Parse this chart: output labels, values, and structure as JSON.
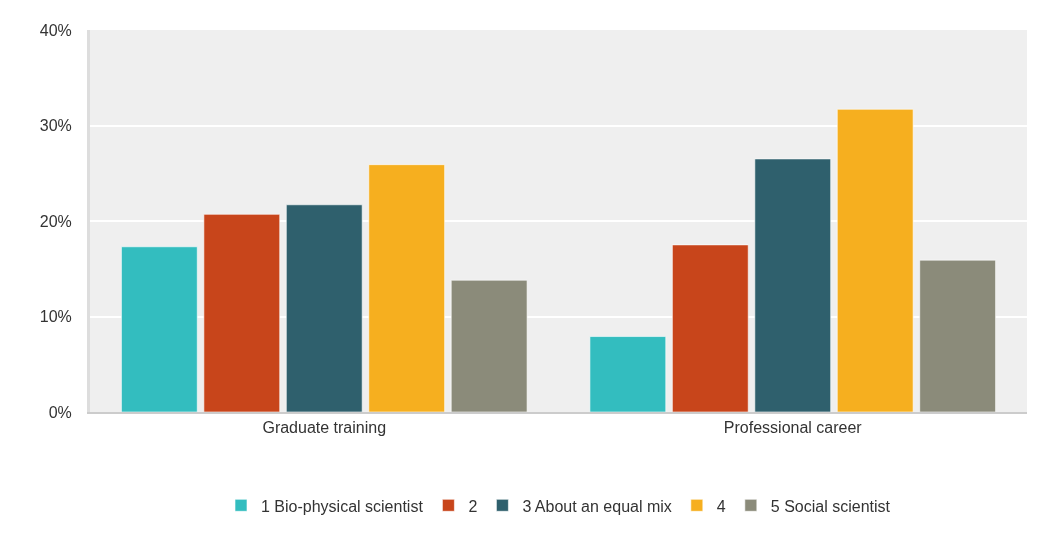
{
  "chart_data": {
    "type": "bar",
    "categories": [
      "Graduate training",
      "Professional career"
    ],
    "series": [
      {
        "name": "1 Bio-physical scientist",
        "color": "#33bdbf",
        "values": [
          17.3,
          7.9
        ]
      },
      {
        "name": "2",
        "color": "#c8451b",
        "values": [
          20.7,
          17.5
        ]
      },
      {
        "name": "3 About an equal mix",
        "color": "#2f606d",
        "values": [
          21.7,
          26.5
        ]
      },
      {
        "name": "4",
        "color": "#f6af1f",
        "values": [
          25.9,
          31.7
        ]
      },
      {
        "name": "5 Social scientist",
        "color": "#8b8b7a",
        "values": [
          13.8,
          15.9
        ]
      }
    ],
    "ylim": [
      0,
      40
    ],
    "yticks": [
      {
        "value": 0,
        "label": "0%"
      },
      {
        "value": 10,
        "label": "10%"
      },
      {
        "value": 20,
        "label": "20%"
      },
      {
        "value": 30,
        "label": "30%"
      },
      {
        "value": 40,
        "label": "40%"
      }
    ],
    "grid": "y",
    "legend": "bottom"
  }
}
